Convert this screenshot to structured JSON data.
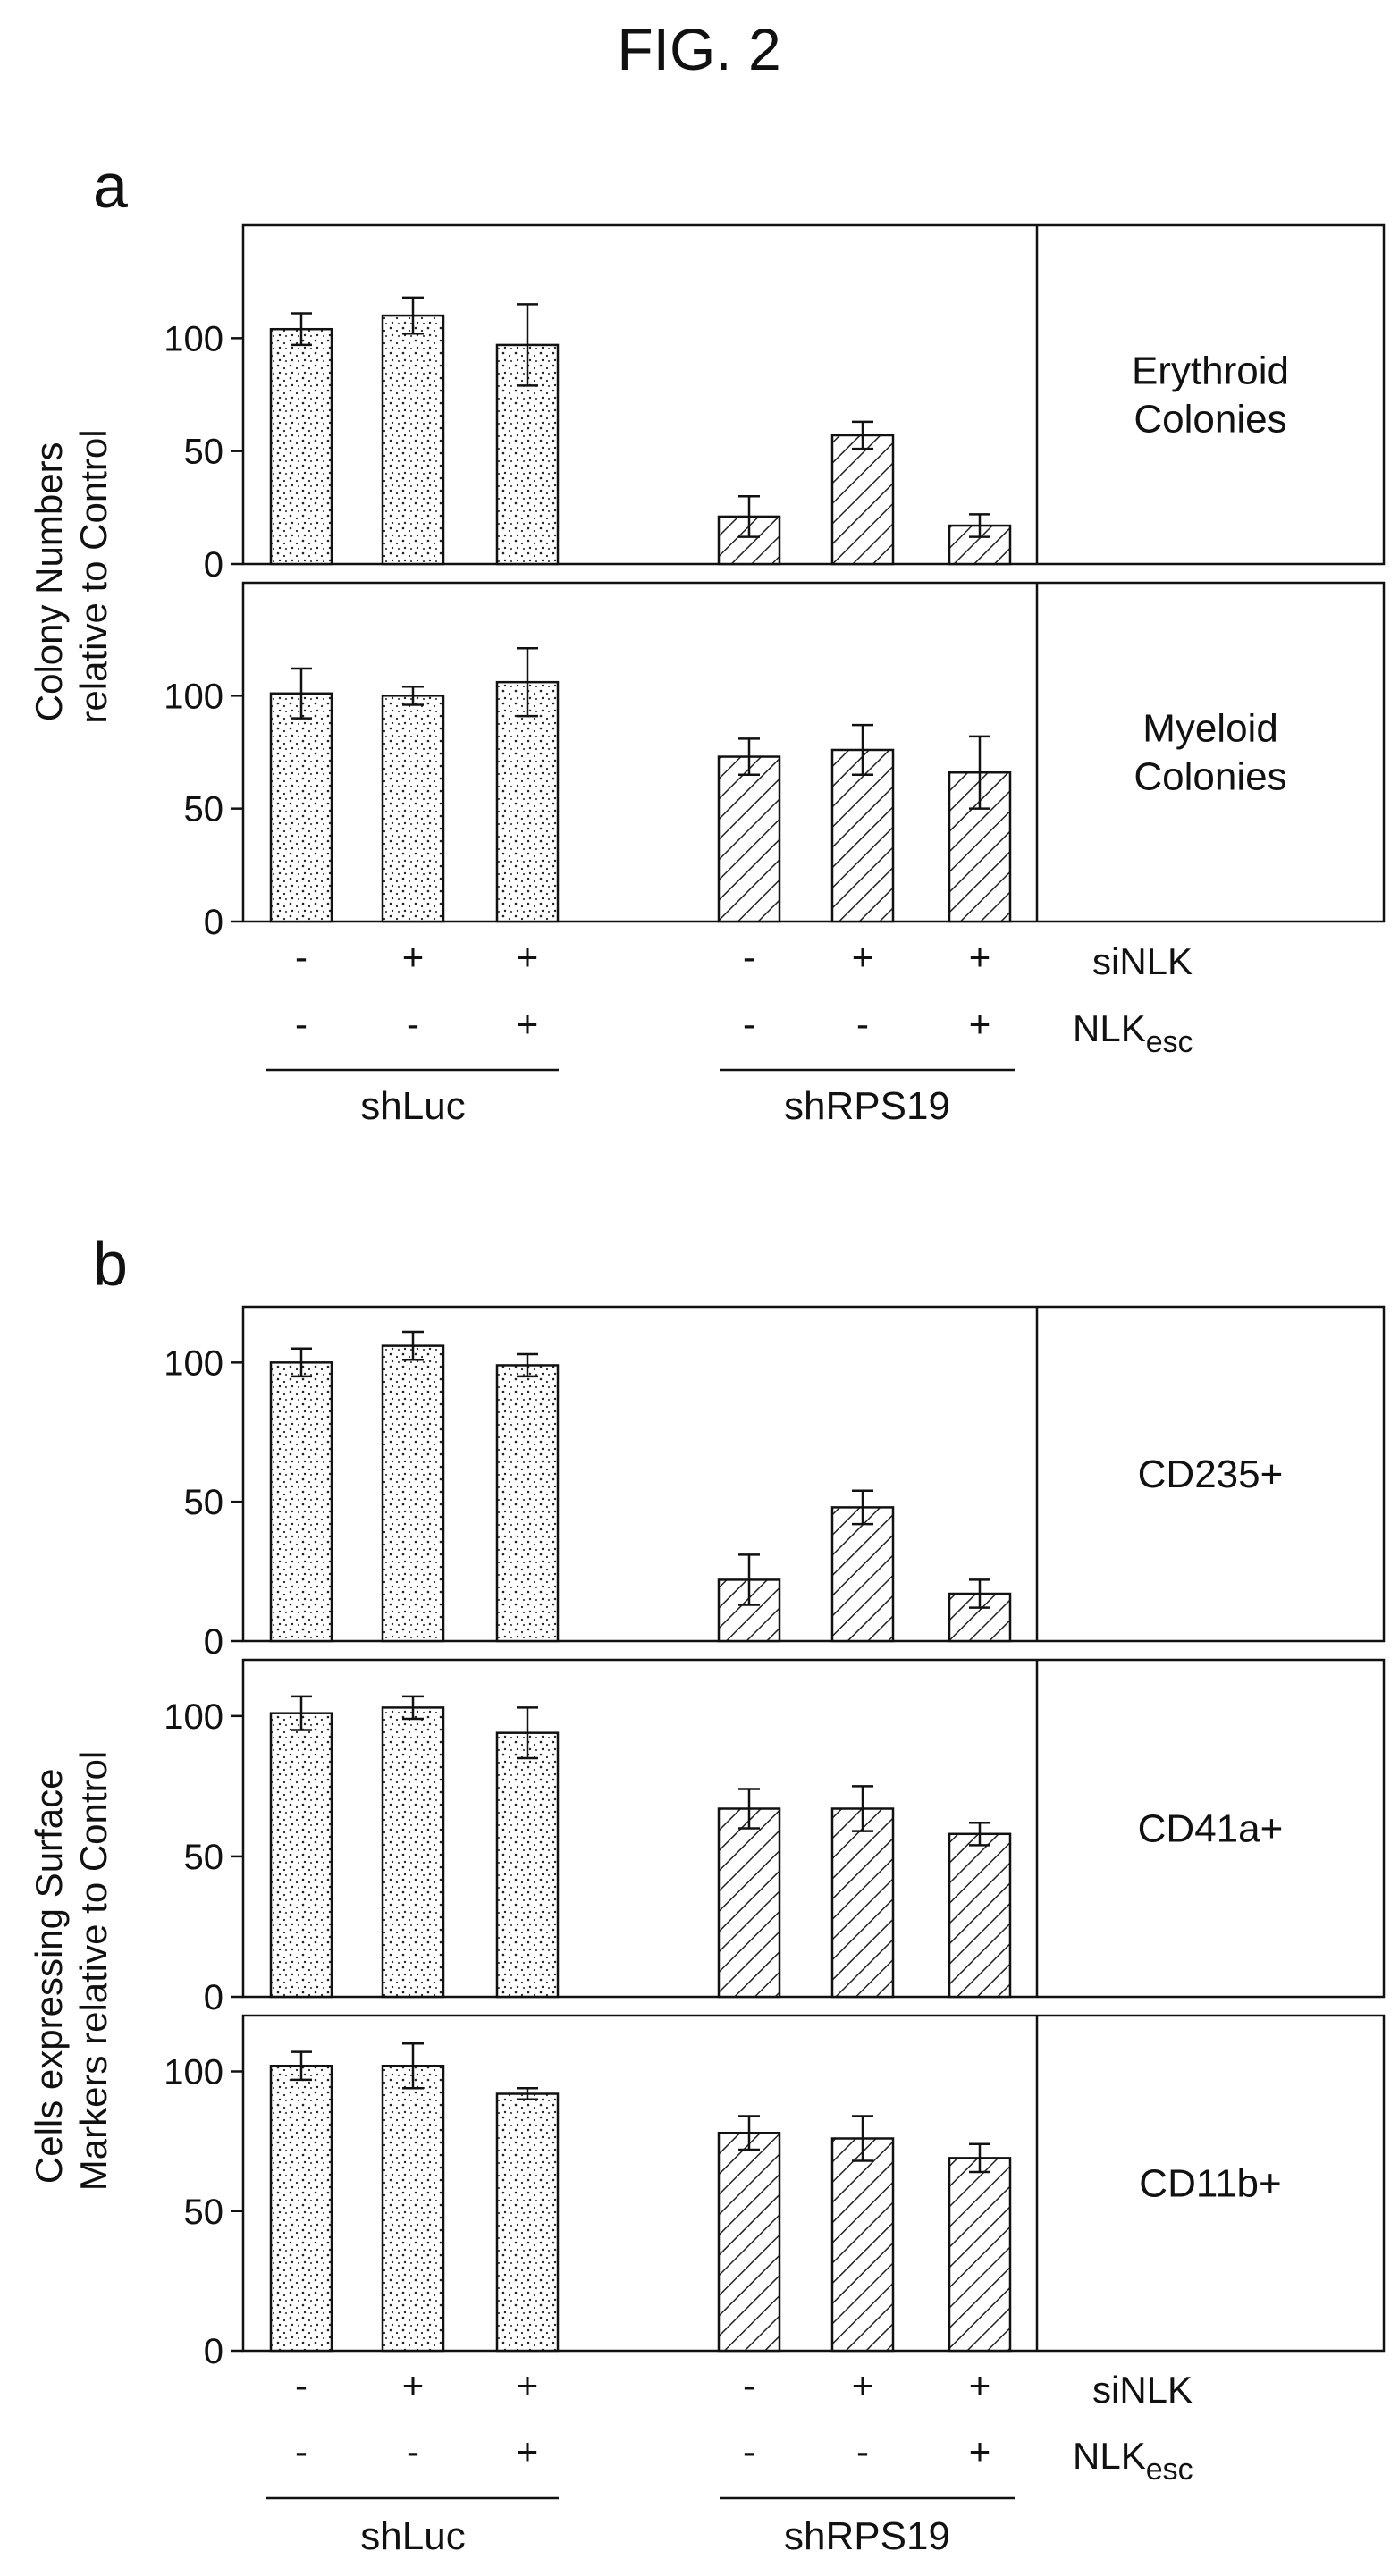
{
  "figure_title": "FIG. 2",
  "panels": [
    {
      "letter": "a",
      "ylabel_lines": [
        "Colony Numbers",
        "relative to Control"
      ],
      "factors": [
        {
          "name": "siNLK",
          "signs": [
            "-",
            "+",
            "+",
            "-",
            "+",
            "+"
          ]
        },
        {
          "name": "NLK",
          "subscript": "esc",
          "signs": [
            "-",
            "-",
            "+",
            "-",
            "-",
            "+"
          ]
        }
      ],
      "groups": [
        "shLuc",
        "shRPS19"
      ]
    },
    {
      "letter": "b",
      "ylabel_lines": [
        "Cells expressing Surface",
        "Markers relative to Control"
      ],
      "factors": [
        {
          "name": "siNLK",
          "signs": [
            "-",
            "+",
            "+",
            "-",
            "+",
            "+"
          ]
        },
        {
          "name": "NLK",
          "subscript": "esc",
          "signs": [
            "-",
            "-",
            "+",
            "-",
            "-",
            "+"
          ]
        }
      ],
      "groups": [
        "shLuc",
        "shRPS19"
      ]
    }
  ],
  "chart_data": [
    {
      "type": "bar",
      "panel": "a",
      "label_lines": [
        "Erythroid",
        "Colonies"
      ],
      "ylim": [
        0,
        150
      ],
      "yticks": [
        0,
        50,
        100
      ],
      "values": [
        104,
        110,
        97,
        21,
        57,
        17
      ],
      "errors": [
        7,
        8,
        18,
        9,
        6,
        5
      ],
      "patterns": [
        "dots",
        "dots",
        "dots",
        "hatch",
        "hatch",
        "hatch"
      ]
    },
    {
      "type": "bar",
      "panel": "a",
      "label_lines": [
        "Myeloid",
        "Colonies"
      ],
      "ylim": [
        0,
        150
      ],
      "yticks": [
        0,
        50,
        100
      ],
      "values": [
        101,
        100,
        106,
        73,
        76,
        66
      ],
      "errors": [
        11,
        4,
        15,
        8,
        11,
        16
      ],
      "patterns": [
        "dots",
        "dots",
        "dots",
        "hatch",
        "hatch",
        "hatch"
      ]
    },
    {
      "type": "bar",
      "panel": "b",
      "label_lines": [
        "CD235+"
      ],
      "ylim": [
        0,
        120
      ],
      "yticks": [
        0,
        50,
        100
      ],
      "values": [
        100,
        106,
        99,
        22,
        48,
        17
      ],
      "errors": [
        5,
        5,
        4,
        9,
        6,
        5
      ],
      "patterns": [
        "dots",
        "dots",
        "dots",
        "hatch",
        "hatch",
        "hatch"
      ]
    },
    {
      "type": "bar",
      "panel": "b",
      "label_lines": [
        "CD41a+"
      ],
      "ylim": [
        0,
        120
      ],
      "yticks": [
        0,
        50,
        100
      ],
      "values": [
        101,
        103,
        94,
        67,
        67,
        58
      ],
      "errors": [
        6,
        4,
        9,
        7,
        8,
        4
      ],
      "patterns": [
        "dots",
        "dots",
        "dots",
        "hatch",
        "hatch",
        "hatch"
      ]
    },
    {
      "type": "bar",
      "panel": "b",
      "label_lines": [
        "CD11b+"
      ],
      "ylim": [
        0,
        120
      ],
      "yticks": [
        0,
        50,
        100
      ],
      "values": [
        102,
        102,
        92,
        78,
        76,
        69
      ],
      "errors": [
        5,
        8,
        2,
        6,
        8,
        5
      ],
      "patterns": [
        "dots",
        "dots",
        "dots",
        "hatch",
        "hatch",
        "hatch"
      ]
    }
  ]
}
